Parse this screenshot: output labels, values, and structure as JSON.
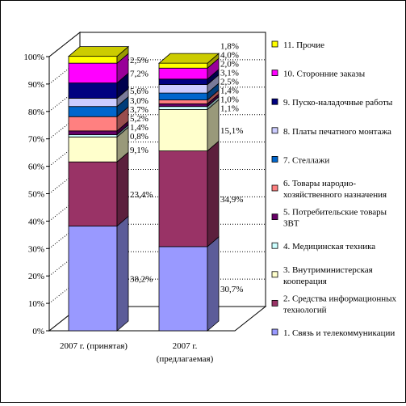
{
  "chart_data": {
    "type": "bar",
    "stacked": true,
    "three_d": true,
    "categories": [
      "2007 г. (принятая)",
      "2007 г. (предлагаемая)"
    ],
    "category_label_lines": [
      [
        "2007 г. (принятая)"
      ],
      [
        "2007 г.",
        "(предлагаемая)"
      ]
    ],
    "y_ticks": [
      "0%",
      "10%",
      "20%",
      "30%",
      "40%",
      "50%",
      "60%",
      "70%",
      "80%",
      "90%",
      "100%"
    ],
    "ylim": [
      0,
      100
    ],
    "legend_position": "right",
    "series": [
      {
        "name": "1. Связь и телекоммуникации",
        "legend_lines": [
          "1. Связь и телекоммуникации"
        ],
        "color": "#9999FF",
        "values": [
          38.2,
          30.7
        ],
        "labels": [
          "38,2%",
          "30,7%"
        ]
      },
      {
        "name": "2. Средства информационных технологий",
        "legend_lines": [
          "2. Средства информационных",
          "технологий"
        ],
        "color": "#993366",
        "values": [
          23.4,
          34.9
        ],
        "labels": [
          "23,4%",
          "34,9%"
        ]
      },
      {
        "name": "3. Внутриминистерская кооперация",
        "legend_lines": [
          "3. Внутриминистерская",
          "кооперация"
        ],
        "color": "#FFFFCC",
        "values": [
          9.1,
          15.1
        ],
        "labels": [
          "9,1%",
          "15,1%"
        ]
      },
      {
        "name": "4. Медицинская техника",
        "legend_lines": [
          "4. Медицинская техника"
        ],
        "color": "#CCFFFF",
        "values": [
          0.8,
          1.1
        ],
        "labels": [
          "0,8%",
          "1,1%"
        ]
      },
      {
        "name": "5. Потребительские товары ЗВТ",
        "legend_lines": [
          "5. Потребительские товары",
          "ЗВТ"
        ],
        "color": "#660066",
        "values": [
          1.4,
          1.0
        ],
        "labels": [
          "1,4%",
          "1,0%"
        ]
      },
      {
        "name": "6. Товары народно-хозяйственного назначения",
        "legend_lines": [
          "6. Товары народно-",
          "хозяйственного назначения"
        ],
        "color": "#FF8080",
        "values": [
          5.2,
          1.4
        ],
        "labels": [
          "5,2%",
          "1,4%"
        ]
      },
      {
        "name": "7. Стеллажи",
        "legend_lines": [
          "7. Стеллажи"
        ],
        "color": "#0066CC",
        "values": [
          3.7,
          2.5
        ],
        "labels": [
          "3,7%",
          "2,5%"
        ]
      },
      {
        "name": "8. Платы печатного монтажа",
        "legend_lines": [
          "8. Платы печатного монтажа"
        ],
        "color": "#CCCCFF",
        "values": [
          3.0,
          3.1
        ],
        "labels": [
          "3,0%",
          "3,1%"
        ]
      },
      {
        "name": "9. Пуско-наладочные работы",
        "legend_lines": [
          "9. Пуско-наладочные работы"
        ],
        "color": "#000080",
        "values": [
          5.6,
          2.0
        ],
        "labels": [
          "5,6%",
          "2,0%"
        ]
      },
      {
        "name": "10. Сторонние заказы",
        "legend_lines": [
          "10. Сторонние заказы"
        ],
        "color": "#FF00FF",
        "values": [
          7.2,
          4.0
        ],
        "labels": [
          "7,2%",
          "4,0%"
        ]
      },
      {
        "name": "11. Прочие",
        "legend_lines": [
          "11. Прочие"
        ],
        "color": "#FFFF00",
        "values": [
          2.5,
          1.8
        ],
        "labels": [
          "2,5%",
          "1,8%"
        ]
      }
    ]
  }
}
